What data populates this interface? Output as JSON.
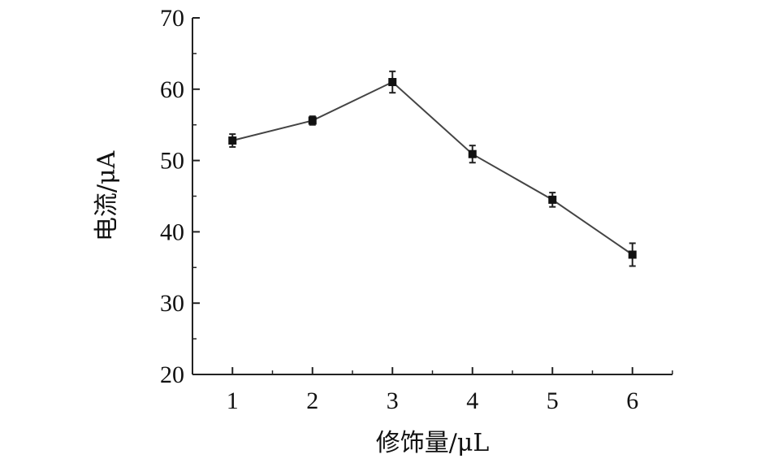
{
  "chart_data": {
    "type": "line",
    "title": "",
    "xlabel": "修饰量/μL",
    "ylabel": "电流/μA",
    "x": [
      1,
      2,
      3,
      4,
      5,
      6
    ],
    "xticks": [
      "1",
      "2",
      "3",
      "4",
      "5",
      "6"
    ],
    "xlim": [
      0.5,
      6.5
    ],
    "ylim": [
      20,
      70
    ],
    "yticks": [
      "20",
      "30",
      "40",
      "50",
      "60",
      "70"
    ],
    "ytick_values": [
      20,
      30,
      40,
      50,
      60,
      70
    ],
    "series": [
      {
        "values": [
          52.8,
          55.6,
          61.0,
          50.9,
          44.5,
          36.8
        ],
        "errors": [
          0.9,
          0.6,
          1.5,
          1.2,
          1.0,
          1.6
        ],
        "marker": "square",
        "color": "#111111"
      }
    ],
    "grid": false,
    "legend": "none"
  }
}
